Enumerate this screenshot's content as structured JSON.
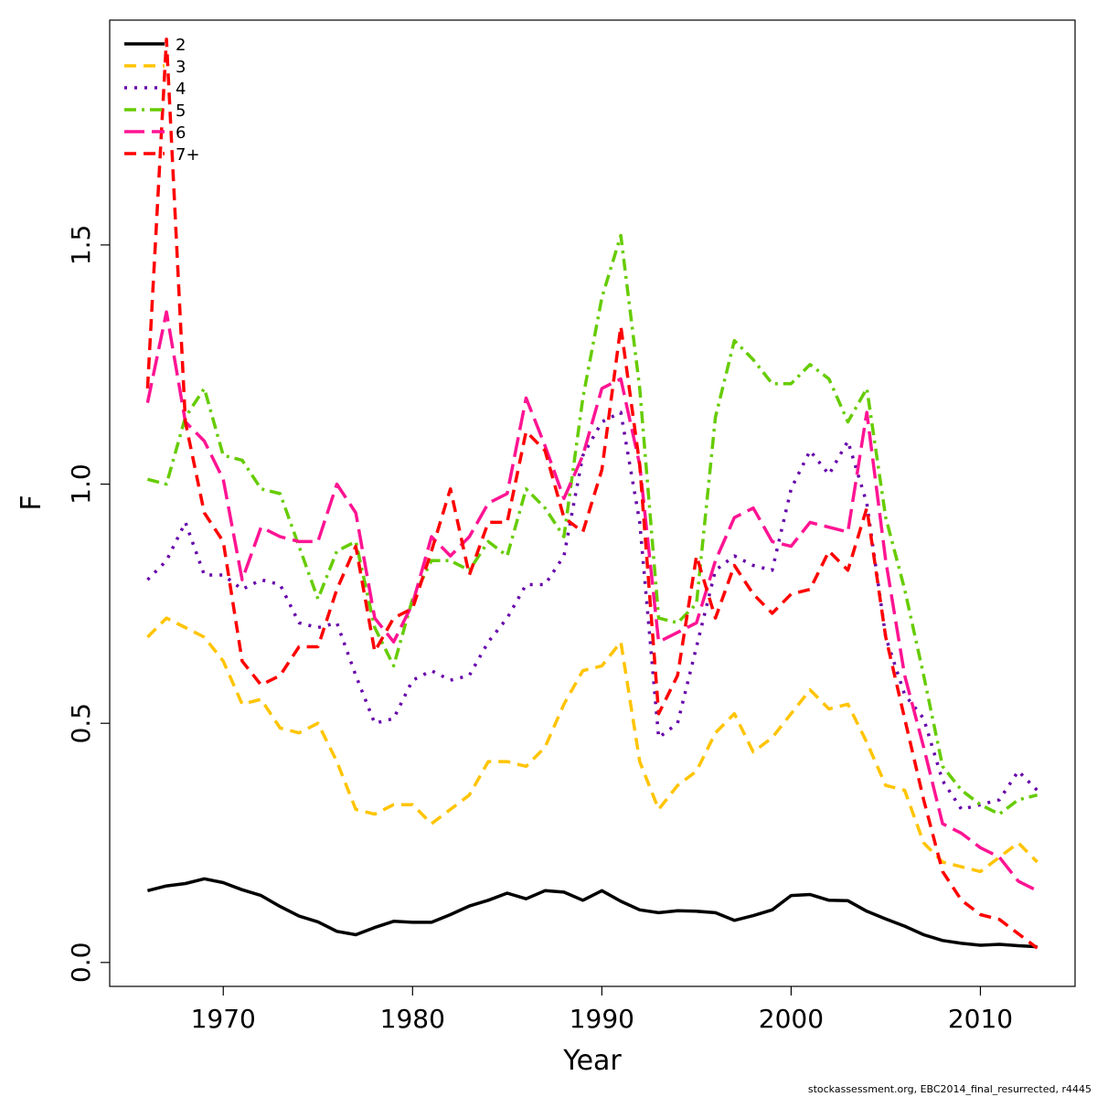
{
  "chart_data": {
    "type": "line",
    "title": "",
    "xlabel": "Year",
    "ylabel": "F",
    "xlim": [
      1964,
      2015
    ],
    "ylim": [
      -0.05,
      1.97
    ],
    "xticks": [
      1970,
      1980,
      1990,
      2000,
      2010
    ],
    "yticks": [
      0.0,
      0.5,
      1.0,
      1.5
    ],
    "ytick_labels": [
      "0.0",
      "0.5",
      "1.0",
      "1.5"
    ],
    "grid": false,
    "legend_position": "top-left",
    "x": [
      1966,
      1967,
      1968,
      1969,
      1970,
      1971,
      1972,
      1973,
      1974,
      1975,
      1976,
      1977,
      1978,
      1979,
      1980,
      1981,
      1982,
      1983,
      1984,
      1985,
      1986,
      1987,
      1988,
      1989,
      1990,
      1991,
      1992,
      1993,
      1994,
      1995,
      1996,
      1997,
      1998,
      1999,
      2000,
      2001,
      2002,
      2003,
      2004,
      2005,
      2006,
      2007,
      2008,
      2009,
      2010,
      2011,
      2012,
      2013
    ],
    "series": [
      {
        "name": "2",
        "color": "#000000",
        "dash": "solid",
        "width": 3.5,
        "values": [
          0.15,
          0.16,
          0.165,
          0.175,
          0.167,
          0.152,
          0.14,
          0.117,
          0.097,
          0.085,
          0.065,
          0.058,
          0.073,
          0.086,
          0.084,
          0.084,
          0.1,
          0.118,
          0.13,
          0.145,
          0.133,
          0.15,
          0.147,
          0.13,
          0.15,
          0.128,
          0.11,
          0.104,
          0.108,
          0.107,
          0.104,
          0.088,
          0.098,
          0.11,
          0.14,
          0.142,
          0.13,
          0.129,
          0.107,
          0.091,
          0.076,
          0.058,
          0.046,
          0.04,
          0.036,
          0.038,
          0.035,
          0.033
        ]
      },
      {
        "name": "3",
        "color": "#ffc400",
        "dash": "13 8",
        "width": 3.5,
        "values": [
          0.68,
          0.72,
          0.7,
          0.68,
          0.63,
          0.54,
          0.55,
          0.49,
          0.48,
          0.5,
          0.42,
          0.32,
          0.31,
          0.33,
          0.33,
          0.29,
          0.32,
          0.35,
          0.42,
          0.42,
          0.41,
          0.45,
          0.54,
          0.61,
          0.62,
          0.67,
          0.42,
          0.32,
          0.37,
          0.4,
          0.48,
          0.52,
          0.44,
          0.47,
          0.52,
          0.57,
          0.53,
          0.54,
          0.46,
          0.37,
          0.36,
          0.25,
          0.21,
          0.2,
          0.19,
          0.22,
          0.25,
          0.21
        ]
      },
      {
        "name": "4",
        "color": "#6600aa",
        "dash": "3 8",
        "width": 3.5,
        "values": [
          0.8,
          0.84,
          0.92,
          0.81,
          0.81,
          0.78,
          0.8,
          0.79,
          0.71,
          0.7,
          0.71,
          0.6,
          0.5,
          0.51,
          0.59,
          0.61,
          0.59,
          0.6,
          0.67,
          0.72,
          0.79,
          0.79,
          0.85,
          1.06,
          1.13,
          1.15,
          0.92,
          0.47,
          0.5,
          0.66,
          0.82,
          0.85,
          0.83,
          0.82,
          0.99,
          1.07,
          1.02,
          1.09,
          0.96,
          0.68,
          0.56,
          0.51,
          0.38,
          0.32,
          0.33,
          0.34,
          0.4,
          0.36
        ]
      },
      {
        "name": "5",
        "color": "#66cc00",
        "dash": "13 6 3 6",
        "width": 3.5,
        "values": [
          1.01,
          1.0,
          1.14,
          1.2,
          1.06,
          1.05,
          0.99,
          0.98,
          0.87,
          0.76,
          0.86,
          0.88,
          0.7,
          0.62,
          0.76,
          0.84,
          0.84,
          0.82,
          0.88,
          0.85,
          0.99,
          0.95,
          0.89,
          1.18,
          1.39,
          1.52,
          1.2,
          0.72,
          0.71,
          0.75,
          1.14,
          1.3,
          1.26,
          1.21,
          1.21,
          1.25,
          1.22,
          1.13,
          1.2,
          0.93,
          0.78,
          0.6,
          0.41,
          0.36,
          0.33,
          0.31,
          0.34,
          0.35
        ]
      },
      {
        "name": "6",
        "color": "#ff1493",
        "dash": "22 8",
        "width": 3.5,
        "values": [
          1.17,
          1.36,
          1.13,
          1.09,
          1.01,
          0.8,
          0.91,
          0.89,
          0.88,
          0.88,
          1.0,
          0.94,
          0.72,
          0.67,
          0.75,
          0.89,
          0.85,
          0.89,
          0.96,
          0.98,
          1.18,
          1.08,
          0.97,
          1.06,
          1.2,
          1.22,
          1.04,
          0.67,
          0.69,
          0.71,
          0.84,
          0.93,
          0.95,
          0.88,
          0.87,
          0.92,
          0.91,
          0.9,
          1.15,
          0.84,
          0.6,
          0.45,
          0.29,
          0.27,
          0.24,
          0.22,
          0.17,
          0.15
        ]
      },
      {
        "name": "7+",
        "color": "#ff0000",
        "dash": "13 8",
        "width": 3.5,
        "values": [
          1.2,
          1.93,
          1.13,
          0.94,
          0.88,
          0.63,
          0.58,
          0.6,
          0.66,
          0.66,
          0.78,
          0.87,
          0.65,
          0.72,
          0.74,
          0.86,
          0.99,
          0.81,
          0.92,
          0.92,
          1.11,
          1.07,
          0.93,
          0.9,
          1.03,
          1.33,
          1.04,
          0.52,
          0.6,
          0.85,
          0.72,
          0.83,
          0.77,
          0.73,
          0.77,
          0.78,
          0.86,
          0.82,
          0.95,
          0.68,
          0.51,
          0.34,
          0.19,
          0.13,
          0.1,
          0.09,
          0.06,
          0.03
        ]
      }
    ]
  },
  "footer": "stockassessment.org, EBC2014_final_resurrected, r4445"
}
